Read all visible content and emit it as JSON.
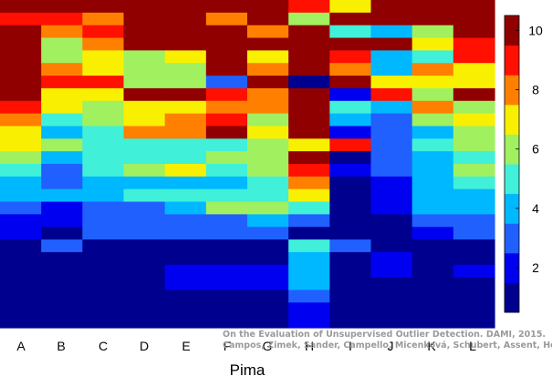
{
  "chart_data": {
    "type": "heatmap",
    "title": "",
    "xlabel": "Pima",
    "ylabel": "",
    "categories": [
      "A",
      "B",
      "C",
      "D",
      "E",
      "F",
      "G",
      "H",
      "I",
      "J",
      "K",
      "L"
    ],
    "colorbar": {
      "min": 0.5,
      "max": 10.5,
      "ticks": [
        "2",
        "4",
        "6",
        "8",
        "10"
      ],
      "colormap": "jet"
    },
    "grid": false,
    "column_rank_values": [
      [
        10,
        9,
        10,
        10,
        10,
        10,
        10,
        10,
        9,
        8,
        7,
        7,
        6,
        5,
        4,
        4,
        3,
        2,
        2,
        1,
        1,
        1,
        1,
        1,
        1,
        1
      ],
      [
        10,
        9,
        8,
        6,
        6,
        8,
        9,
        7,
        7,
        5,
        4,
        6,
        4,
        3,
        3,
        4,
        2,
        2,
        1,
        3,
        1,
        1,
        1,
        1,
        1,
        1
      ],
      [
        10,
        8,
        9,
        8,
        7,
        7,
        9,
        7,
        6,
        6,
        5,
        5,
        5,
        5,
        4,
        4,
        3,
        3,
        3,
        1,
        1,
        1,
        1,
        1,
        1,
        1
      ],
      [
        10,
        10,
        10,
        10,
        6,
        6,
        6,
        10,
        7,
        7,
        8,
        5,
        5,
        6,
        4,
        5,
        3,
        3,
        3,
        1,
        1,
        1,
        1,
        1,
        1,
        1
      ],
      [
        10,
        10,
        10,
        10,
        7,
        6,
        6,
        10,
        7,
        8,
        8,
        5,
        5,
        7,
        4,
        5,
        4,
        3,
        3,
        1,
        1,
        2,
        2,
        1,
        1,
        1
      ],
      [
        10,
        8,
        10,
        10,
        10,
        10,
        3,
        9,
        8,
        9,
        10,
        5,
        6,
        5,
        4,
        5,
        6,
        3,
        3,
        1,
        1,
        2,
        2,
        1,
        1,
        1
      ],
      [
        10,
        10,
        8,
        10,
        7,
        8,
        10,
        8,
        8,
        6,
        7,
        6,
        6,
        6,
        5,
        5,
        6,
        4,
        3,
        1,
        1,
        2,
        2,
        1,
        1,
        1
      ],
      [
        9,
        6,
        10,
        10,
        10,
        10,
        1,
        10,
        10,
        10,
        10,
        7,
        10,
        9,
        8,
        7,
        5,
        3,
        1,
        5,
        4,
        4,
        4,
        3,
        2,
        2
      ],
      [
        7,
        10,
        5,
        10,
        9,
        8,
        10,
        2,
        5,
        4,
        2,
        9,
        1,
        2,
        1,
        1,
        1,
        1,
        1,
        3,
        1,
        1,
        1,
        1,
        1,
        1
      ],
      [
        10,
        10,
        4,
        10,
        4,
        4,
        7,
        9,
        4,
        3,
        3,
        3,
        3,
        3,
        2,
        2,
        2,
        1,
        1,
        1,
        2,
        2,
        1,
        1,
        1,
        1
      ],
      [
        10,
        10,
        6,
        7,
        5,
        8,
        7,
        6,
        8,
        6,
        4,
        5,
        4,
        4,
        4,
        4,
        4,
        3,
        2,
        1,
        1,
        1,
        1,
        1,
        1,
        1
      ],
      [
        10,
        10,
        10,
        9,
        9,
        7,
        7,
        10,
        6,
        7,
        6,
        6,
        5,
        6,
        5,
        4,
        4,
        3,
        3,
        1,
        1,
        2,
        1,
        1,
        1,
        1
      ]
    ]
  },
  "watermark": {
    "line1": "On the Evaluation of Unsupervised Outlier Detection. DAMI, 2015.",
    "line2": "Campos, Zimek, Sander, Campello, Micenková, Schubert, Assent, Houle"
  }
}
